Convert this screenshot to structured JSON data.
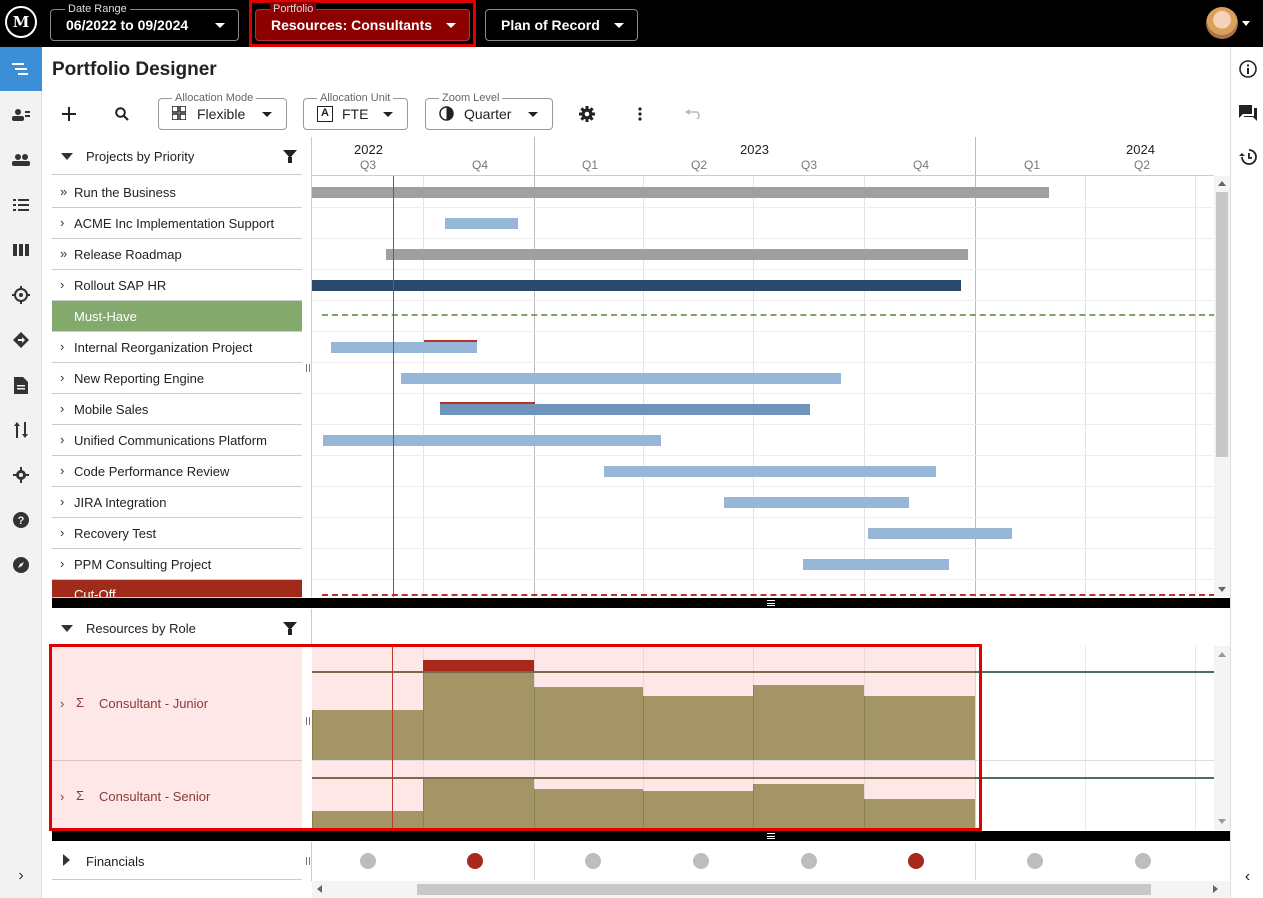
{
  "topbar": {
    "logo_text": "M",
    "date_range": {
      "label": "Date Range",
      "value": "06/2022 to 09/2024"
    },
    "portfolio": {
      "label": "Portfolio",
      "value": "Resources: Consultants"
    },
    "plan": {
      "value": "Plan of Record"
    }
  },
  "page": {
    "title": "Portfolio Designer"
  },
  "toolbar": {
    "allocation_mode": {
      "label": "Allocation Mode",
      "value": "Flexible"
    },
    "allocation_unit": {
      "label": "Allocation Unit",
      "value": "FTE",
      "icon_glyph": "A"
    },
    "zoom_level": {
      "label": "Zoom Level",
      "value": "Quarter"
    }
  },
  "timeline": {
    "years": [
      "2022",
      "2023",
      "2024"
    ],
    "quarters": [
      "Q3",
      "Q4",
      "Q1",
      "Q2",
      "Q3",
      "Q4",
      "Q1",
      "Q2"
    ]
  },
  "projects_header": "Projects by Priority",
  "projects": [
    {
      "label": "Run the Business",
      "expand": "»"
    },
    {
      "label": "ACME Inc Implementation Support",
      "expand": "›"
    },
    {
      "label": "Release Roadmap",
      "expand": "»"
    },
    {
      "label": "Rollout SAP HR",
      "expand": "›"
    },
    {
      "label": "Must-Have",
      "expand": ""
    },
    {
      "label": "Internal Reorganization Project",
      "expand": "›"
    },
    {
      "label": "New Reporting Engine",
      "expand": "›"
    },
    {
      "label": "Mobile Sales",
      "expand": "›"
    },
    {
      "label": "Unified Communications Platform",
      "expand": "›"
    },
    {
      "label": "Code Performance Review",
      "expand": "›"
    },
    {
      "label": "JIRA Integration",
      "expand": "›"
    },
    {
      "label": "Recovery Test",
      "expand": "›"
    },
    {
      "label": "PPM Consulting Project",
      "expand": "›"
    },
    {
      "label": "Cut-Off",
      "expand": ""
    }
  ],
  "resources_header": "Resources by Role",
  "resources": [
    {
      "label": "Consultant - Junior",
      "expand": "›",
      "sigma": "Σ"
    },
    {
      "label": "Consultant - Senior",
      "expand": "›",
      "sigma": "Σ"
    }
  ],
  "financials": {
    "label": "Financials"
  },
  "colors": {
    "accent_blue": "#3a8fd6",
    "portfolio_red": "#8b0000",
    "must_have_green": "#84a96d",
    "cutoff_red": "#a12a1a",
    "bar_gray": "#a0a0a0",
    "bar_light_blue": "#97b7d9",
    "bar_mid_blue": "#6f93bb",
    "bar_dark_navy": "#2b4a6b",
    "resource_olive": "#a39565",
    "over_allocation": "#a8281a"
  },
  "icons": {
    "rail": [
      "gantt-icon",
      "user-list-icon",
      "users-icon",
      "list-icon",
      "board-icon",
      "target-icon",
      "roadmap-icon",
      "document-icon",
      "sort-icon",
      "settings-icon",
      "help-icon",
      "compass-icon"
    ],
    "right_rail": [
      "info-icon",
      "comments-icon",
      "history-icon"
    ]
  }
}
